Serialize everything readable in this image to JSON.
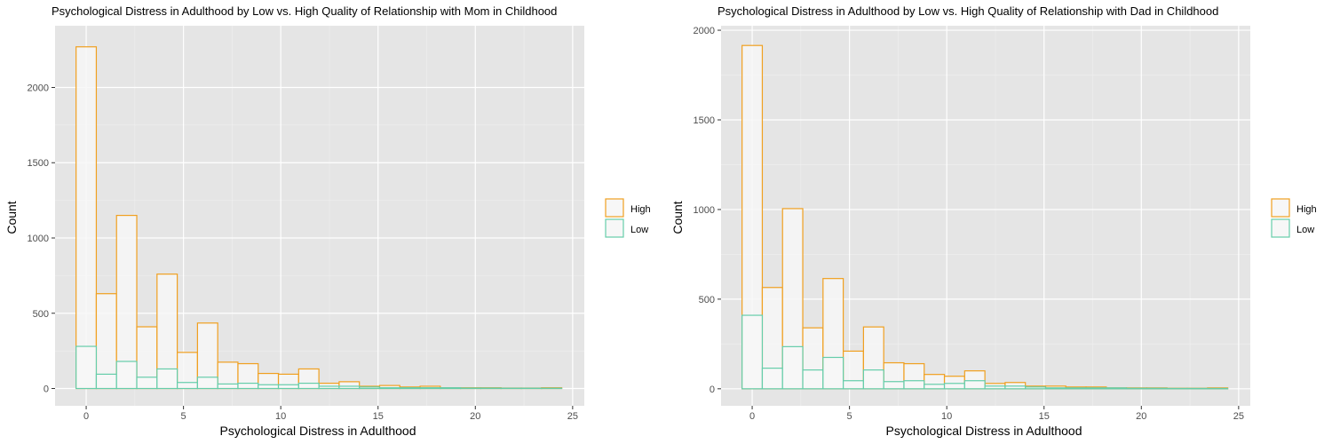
{
  "colors": {
    "panel_bg": "#e5e5e5",
    "grid_major": "#ffffff",
    "grid_minor": "#f0f0f0",
    "high": "#f0a020",
    "low": "#66cdaa",
    "bar_fill": "#f7f7f7"
  },
  "chart_data": [
    {
      "type": "bar",
      "subtype": "overlaid-histogram",
      "title": "Psychological Distress in Adulthood by Low vs. High Quality of Relationship with Mom in Childhood",
      "xlabel": "Psychological Distress in Adulthood",
      "ylabel": "Count",
      "xlim": [
        -1.6,
        25.6
      ],
      "ylim": [
        -115,
        2410
      ],
      "xticks": [
        0,
        5,
        10,
        15,
        20,
        25
      ],
      "yticks": [
        0,
        500,
        1000,
        1500,
        2000
      ],
      "bin_width": 1.04,
      "bin_centers": [
        0,
        1.04,
        2.08,
        3.12,
        4.16,
        5.2,
        6.24,
        7.28,
        8.32,
        9.36,
        10.4,
        11.44,
        12.48,
        13.52,
        14.56,
        15.6,
        16.64,
        17.68,
        18.72,
        19.76,
        20.8,
        21.84,
        22.88,
        23.92
      ],
      "legend": {
        "position": "right",
        "entries": [
          "High",
          "Low"
        ]
      },
      "series": [
        {
          "name": "High",
          "color": "#f0a020",
          "values": [
            2270,
            630,
            1150,
            410,
            760,
            240,
            435,
            175,
            165,
            100,
            95,
            130,
            35,
            45,
            15,
            20,
            10,
            15,
            5,
            5,
            5,
            3,
            3,
            5
          ]
        },
        {
          "name": "Low",
          "color": "#66cdaa",
          "values": [
            280,
            95,
            180,
            75,
            130,
            40,
            75,
            30,
            35,
            25,
            25,
            35,
            15,
            15,
            10,
            5,
            5,
            5,
            5,
            3,
            3,
            2,
            2,
            2
          ]
        }
      ]
    },
    {
      "type": "bar",
      "subtype": "overlaid-histogram",
      "title": "Psychological Distress in Adulthood by Low vs. High Quality of Relationship with Dad in Childhood",
      "xlabel": "Psychological Distress in Adulthood",
      "ylabel": "Count",
      "xlim": [
        -1.6,
        25.6
      ],
      "ylim": [
        -95,
        2025
      ],
      "xticks": [
        0,
        5,
        10,
        15,
        20,
        25
      ],
      "yticks": [
        0,
        500,
        1000,
        1500,
        2000
      ],
      "bin_width": 1.04,
      "bin_centers": [
        0,
        1.04,
        2.08,
        3.12,
        4.16,
        5.2,
        6.24,
        7.28,
        8.32,
        9.36,
        10.4,
        11.44,
        12.48,
        13.52,
        14.56,
        15.6,
        16.64,
        17.68,
        18.72,
        19.76,
        20.8,
        21.84,
        22.88,
        23.92
      ],
      "legend": {
        "position": "right",
        "entries": [
          "High",
          "Low"
        ]
      },
      "series": [
        {
          "name": "High",
          "color": "#f0a020",
          "values": [
            1915,
            565,
            1005,
            340,
            615,
            210,
            345,
            145,
            140,
            80,
            70,
            100,
            30,
            35,
            15,
            15,
            10,
            10,
            5,
            5,
            5,
            3,
            3,
            5
          ]
        },
        {
          "name": "Low",
          "color": "#66cdaa",
          "values": [
            410,
            115,
            235,
            105,
            175,
            45,
            105,
            40,
            45,
            25,
            30,
            45,
            15,
            15,
            10,
            5,
            5,
            5,
            5,
            3,
            3,
            2,
            2,
            2
          ]
        }
      ]
    }
  ]
}
